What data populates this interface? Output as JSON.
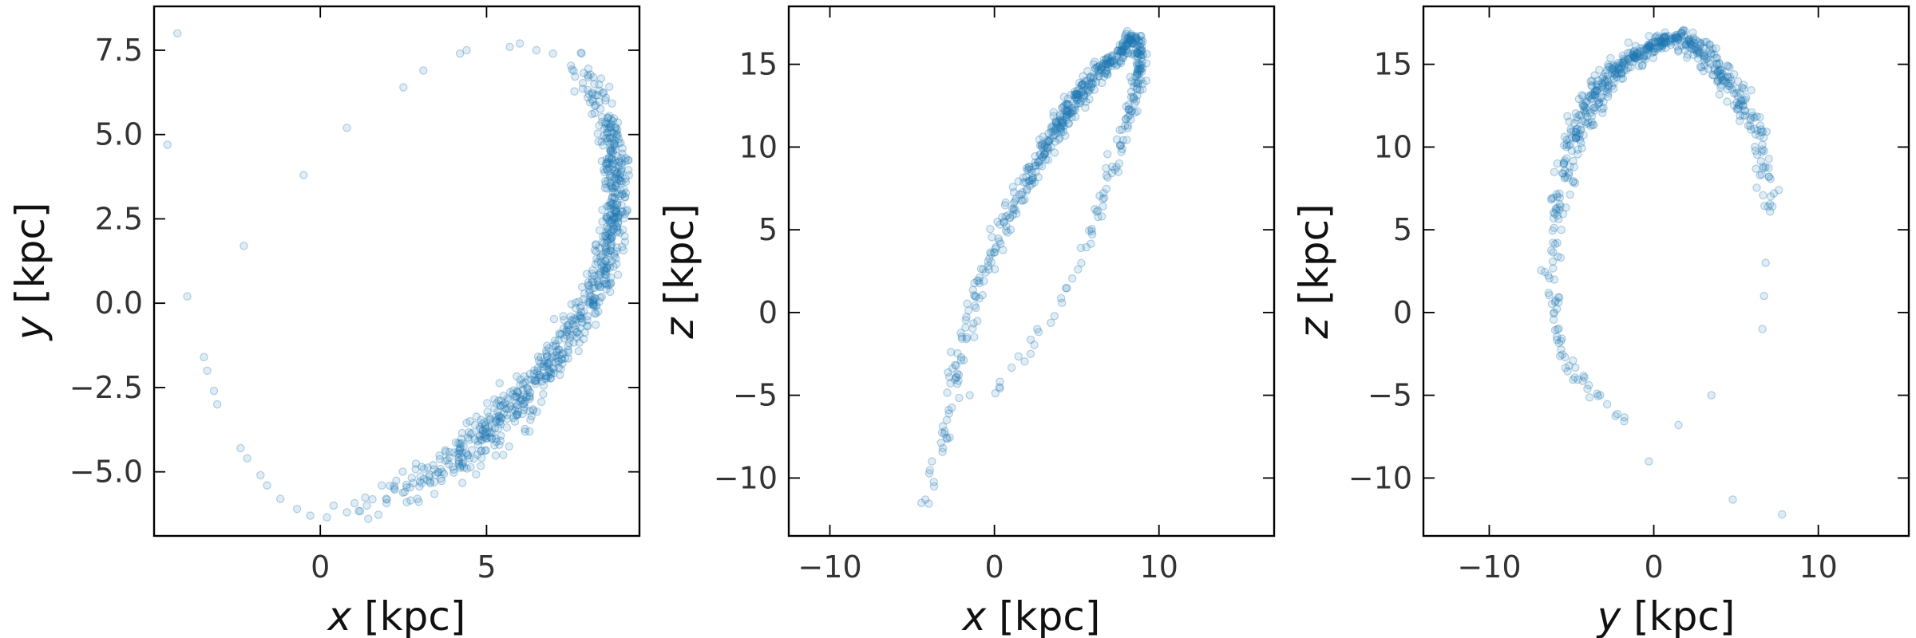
{
  "chart_data": [
    {
      "type": "scatter",
      "xlabel": {
        "symbol": "x",
        "unit": "[kpc]"
      },
      "ylabel": {
        "symbol": "y",
        "unit": "[kpc]"
      },
      "xlim": [
        -5.0,
        9.6
      ],
      "ylim": [
        -6.9,
        8.8
      ],
      "xticks": [
        {
          "value": 0,
          "label": "0"
        },
        {
          "value": 5,
          "label": "5"
        }
      ],
      "yticks": [
        {
          "value": -5.0,
          "label": "−5.0"
        },
        {
          "value": -2.5,
          "label": "−2.5"
        },
        {
          "value": 0.0,
          "label": "0.0"
        },
        {
          "value": 2.5,
          "label": "2.5"
        },
        {
          "value": 5.0,
          "label": "5.0"
        },
        {
          "value": 7.5,
          "label": "7.5"
        }
      ],
      "grid": false,
      "color": "#1f77b4",
      "dense_tracks": [
        {
          "points": [
            [
              1.0,
              -6.1
            ],
            [
              2.0,
              -5.8
            ],
            [
              3.0,
              -5.3
            ],
            [
              4.0,
              -4.7
            ],
            [
              5.0,
              -3.9
            ],
            [
              6.0,
              -2.9
            ],
            [
              7.0,
              -1.7
            ],
            [
              7.8,
              -0.5
            ],
            [
              8.3,
              0.3
            ],
            [
              8.7,
              1.6
            ],
            [
              8.9,
              3.0
            ],
            [
              8.85,
              4.3
            ],
            [
              8.7,
              5.2
            ],
            [
              8.3,
              6.3
            ],
            [
              7.5,
              7.2
            ]
          ],
          "density": [
            0.25,
            0.3,
            0.5,
            1.2,
            1.6,
            1.6,
            1.4,
            1.2,
            1.3,
            1.6,
            1.8,
            1.6,
            1.1,
            0.6,
            0.3
          ],
          "spread": [
            0.2,
            0.25,
            0.3,
            0.3,
            0.3,
            0.28,
            0.25,
            0.22,
            0.2,
            0.2,
            0.18,
            0.2,
            0.2,
            0.22,
            0.25
          ]
        }
      ],
      "sparse_points": [
        [
          -4.3,
          8.0
        ],
        [
          -4.6,
          4.7
        ],
        [
          -4.0,
          0.2
        ],
        [
          -3.5,
          -1.6
        ],
        [
          -3.4,
          -2.0
        ],
        [
          -3.2,
          -2.6
        ],
        [
          -3.1,
          -3.0
        ],
        [
          -2.4,
          -4.3
        ],
        [
          -2.2,
          -4.6
        ],
        [
          -1.8,
          -5.1
        ],
        [
          -1.6,
          -5.4
        ],
        [
          -1.2,
          -5.8
        ],
        [
          -0.7,
          -6.1
        ],
        [
          -0.3,
          -6.3
        ],
        [
          0.2,
          -6.35
        ],
        [
          -2.3,
          1.7
        ],
        [
          -0.5,
          3.8
        ],
        [
          0.8,
          5.2
        ],
        [
          2.5,
          6.4
        ],
        [
          3.1,
          6.9
        ],
        [
          4.2,
          7.4
        ],
        [
          4.4,
          7.5
        ],
        [
          5.7,
          7.6
        ],
        [
          6.0,
          7.7
        ],
        [
          6.5,
          7.5
        ],
        [
          7.0,
          7.4
        ],
        [
          0.4,
          -6.0
        ],
        [
          0.8,
          -6.2
        ],
        [
          1.4,
          -6.0
        ],
        [
          2.6,
          -5.9
        ],
        [
          5.5,
          -4.5
        ],
        [
          6.3,
          -3.2
        ],
        [
          4.5,
          -3.5
        ]
      ]
    },
    {
      "type": "scatter",
      "xlabel": {
        "symbol": "x",
        "unit": "[kpc]"
      },
      "ylabel": {
        "symbol": "z",
        "unit": "[kpc]"
      },
      "xlim": [
        -12.5,
        17.0
      ],
      "ylim": [
        -13.5,
        18.5
      ],
      "xticks": [
        {
          "value": -10,
          "label": "−10"
        },
        {
          "value": 0,
          "label": "0"
        },
        {
          "value": 10,
          "label": "10"
        }
      ],
      "yticks": [
        {
          "value": -10,
          "label": "−10"
        },
        {
          "value": -5,
          "label": "−5"
        },
        {
          "value": 0,
          "label": "0"
        },
        {
          "value": 5,
          "label": "5"
        },
        {
          "value": 10,
          "label": "10"
        },
        {
          "value": 15,
          "label": "15"
        }
      ],
      "grid": false,
      "color": "#1f77b4",
      "dense_tracks": [
        {
          "points": [
            [
              -4.4,
              -12.0
            ],
            [
              -3.0,
              -7.0
            ],
            [
              -2.0,
              -2.0
            ],
            [
              -1.0,
              1.5
            ],
            [
              0.0,
              4.0
            ],
            [
              1.0,
              6.0
            ],
            [
              2.0,
              8.0
            ],
            [
              3.0,
              9.8
            ],
            [
              4.0,
              11.5
            ],
            [
              5.0,
              13.0
            ],
            [
              6.0,
              14.2
            ],
            [
              7.0,
              15.2
            ],
            [
              8.0,
              16.1
            ],
            [
              8.5,
              16.8
            ]
          ],
          "density": [
            0.1,
            0.2,
            0.3,
            0.35,
            0.45,
            0.55,
            0.7,
            1.2,
            1.6,
            1.7,
            1.7,
            1.6,
            1.8,
            1.8
          ],
          "spread": [
            0.25,
            0.25,
            0.25,
            0.25,
            0.25,
            0.25,
            0.25,
            0.28,
            0.3,
            0.3,
            0.28,
            0.26,
            0.24,
            0.24
          ]
        },
        {
          "points": [
            [
              8.5,
              16.8
            ],
            [
              8.9,
              15.5
            ],
            [
              8.6,
              13.5
            ],
            [
              8.2,
              12.0
            ],
            [
              7.6,
              10.0
            ],
            [
              7.0,
              8.0
            ],
            [
              6.2,
              6.0
            ],
            [
              5.5,
              4.0
            ],
            [
              4.7,
              2.0
            ],
            [
              3.5,
              -0.2
            ],
            [
              1.2,
              -3.3
            ],
            [
              -0.5,
              -5.0
            ]
          ],
          "density": [
            1.6,
            1.3,
            0.8,
            0.45,
            0.35,
            0.25,
            0.2,
            0.15,
            0.12,
            0.1,
            0.08,
            0.08
          ],
          "spread": [
            0.2,
            0.2,
            0.2,
            0.2,
            0.2,
            0.2,
            0.2,
            0.2,
            0.2,
            0.2,
            0.2,
            0.2
          ]
        }
      ],
      "sparse_points": [
        [
          -4.2,
          -11.3
        ],
        [
          -3.8,
          -9.0
        ],
        [
          -2.9,
          -6.5
        ],
        [
          -1.5,
          -5.0
        ],
        [
          0.3,
          -4.5
        ],
        [
          2.6,
          -1.0
        ],
        [
          2.2,
          -2.5
        ]
      ]
    },
    {
      "type": "scatter",
      "xlabel": {
        "symbol": "y",
        "unit": "[kpc]"
      },
      "ylabel": {
        "symbol": "z",
        "unit": "[kpc]"
      },
      "xlim": [
        -14.0,
        15.5
      ],
      "ylim": [
        -13.5,
        18.5
      ],
      "xticks": [
        {
          "value": -10,
          "label": "−10"
        },
        {
          "value": 0,
          "label": "0"
        },
        {
          "value": 10,
          "label": "10"
        }
      ],
      "yticks": [
        {
          "value": -10,
          "label": "−10"
        },
        {
          "value": -5,
          "label": "−5"
        },
        {
          "value": 0,
          "label": "0"
        },
        {
          "value": 5,
          "label": "5"
        },
        {
          "value": 10,
          "label": "10"
        },
        {
          "value": 15,
          "label": "15"
        }
      ],
      "grid": false,
      "color": "#1f77b4",
      "dense_tracks": [
        {
          "points": [
            [
              -6.1,
              2.0
            ],
            [
              -5.9,
              5.0
            ],
            [
              -5.5,
              8.0
            ],
            [
              -4.8,
              10.5
            ],
            [
              -4.0,
              12.5
            ],
            [
              -3.0,
              14.0
            ],
            [
              -2.0,
              15.0
            ],
            [
              -1.0,
              15.6
            ],
            [
              0.0,
              16.0
            ],
            [
              0.5,
              16.5
            ],
            [
              1.5,
              16.6
            ],
            [
              2.5,
              16.2
            ],
            [
              3.5,
              15.3
            ],
            [
              4.5,
              14.0
            ],
            [
              5.5,
              12.5
            ],
            [
              6.3,
              10.5
            ],
            [
              6.8,
              8.5
            ],
            [
              7.0,
              6.0
            ]
          ],
          "density": [
            0.2,
            0.3,
            0.5,
            0.9,
            1.5,
            1.7,
            1.8,
            1.8,
            1.9,
            1.9,
            1.8,
            1.7,
            1.5,
            1.2,
            0.8,
            0.5,
            0.3,
            0.2
          ],
          "spread": [
            0.3,
            0.3,
            0.32,
            0.35,
            0.4,
            0.4,
            0.35,
            0.3,
            0.25,
            0.2,
            0.25,
            0.35,
            0.4,
            0.4,
            0.4,
            0.35,
            0.3,
            0.25
          ]
        },
        {
          "points": [
            [
              -6.1,
              2.0
            ],
            [
              -6.0,
              -1.0
            ],
            [
              -5.4,
              -3.0
            ],
            [
              -4.5,
              -4.0
            ],
            [
              -3.0,
              -5.5
            ],
            [
              -1.5,
              -7.0
            ]
          ],
          "density": [
            0.25,
            0.25,
            0.3,
            0.3,
            0.15,
            0.1
          ],
          "spread": [
            0.2,
            0.2,
            0.2,
            0.2,
            0.2,
            0.2
          ]
        }
      ],
      "sparse_points": [
        [
          -0.3,
          -9.0
        ],
        [
          1.5,
          -6.8
        ],
        [
          3.5,
          -5.0
        ],
        [
          4.8,
          -11.3
        ],
        [
          7.8,
          -12.2
        ],
        [
          6.6,
          -1.0
        ],
        [
          6.7,
          1.0
        ],
        [
          6.8,
          3.0
        ],
        [
          7.3,
          7.2
        ],
        [
          7.6,
          7.4
        ],
        [
          7.0,
          8.2
        ]
      ]
    }
  ]
}
